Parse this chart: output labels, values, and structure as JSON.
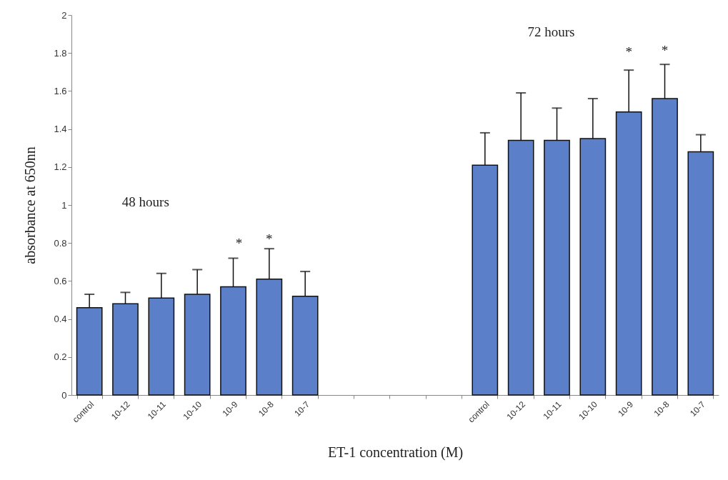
{
  "chart_data": {
    "type": "bar",
    "xlabel": "ET-1 concentration (M)",
    "ylabel": "absorbance at 650nn",
    "categories": [
      "control",
      "10-12",
      "10-11",
      "10-10",
      "10-9",
      "10-8",
      "10-7",
      null,
      null,
      null,
      null,
      "control",
      "10-12",
      "10-11",
      "10-10",
      "10-9",
      "10-8",
      "10-7"
    ],
    "values": [
      0.46,
      0.48,
      0.51,
      0.53,
      0.57,
      0.61,
      0.52,
      null,
      null,
      null,
      null,
      1.21,
      1.34,
      1.34,
      1.35,
      1.49,
      1.56,
      1.28
    ],
    "errors": [
      [
        0.46,
        0.53
      ],
      [
        0.48,
        0.54
      ],
      [
        0.51,
        0.64
      ],
      [
        0.53,
        0.66
      ],
      [
        0.57,
        0.72
      ],
      [
        0.61,
        0.77
      ],
      [
        0.52,
        0.65
      ],
      null,
      null,
      null,
      null,
      [
        1.21,
        1.38
      ],
      [
        1.34,
        1.59
      ],
      [
        1.34,
        1.51
      ],
      [
        1.35,
        1.56
      ],
      [
        1.49,
        1.71
      ],
      [
        1.56,
        1.74
      ],
      [
        1.28,
        1.37
      ]
    ],
    "color": "#5b7fc8",
    "ylim": [
      0,
      2
    ],
    "yticks": [
      0,
      0.2,
      0.4,
      0.6,
      0.8,
      1,
      1.2,
      1.4,
      1.6,
      1.8,
      2
    ],
    "annotations": [
      "48 hours",
      "72 hours",
      "*",
      "*",
      "*",
      "*"
    ]
  }
}
